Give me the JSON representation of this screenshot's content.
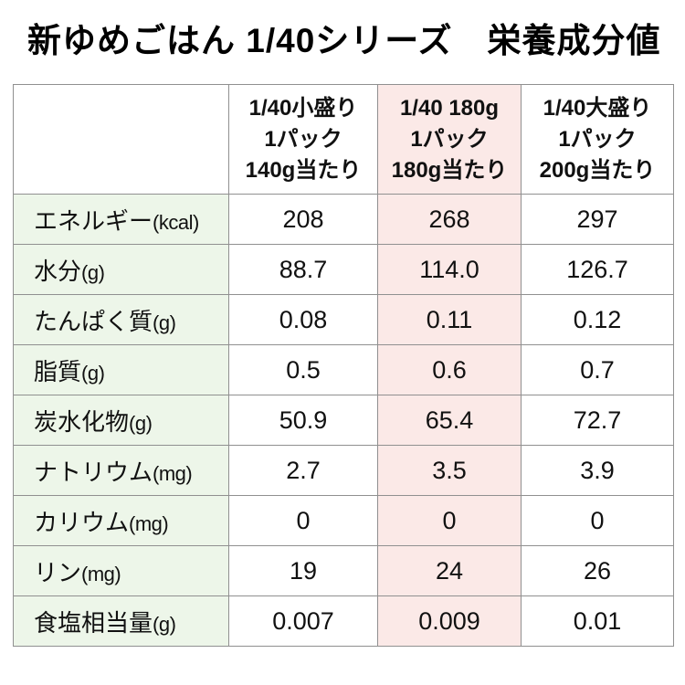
{
  "title": "新ゆめごはん 1/40シリーズ　栄養成分値",
  "table": {
    "columns": [
      {
        "lines": [
          "1/40小盛り",
          "1パック",
          "140g当たり"
        ],
        "highlight": false
      },
      {
        "lines": [
          "1/40 180g",
          "1パック",
          "180g当たり"
        ],
        "highlight": true
      },
      {
        "lines": [
          "1/40大盛り",
          "1パック",
          "200g当たり"
        ],
        "highlight": false
      }
    ],
    "rows": [
      {
        "label": "エネルギー",
        "unit": "(kcal)",
        "values": [
          "208",
          "268",
          "297"
        ]
      },
      {
        "label": "水分",
        "unit": "(g)",
        "values": [
          "88.7",
          "114.0",
          "126.7"
        ]
      },
      {
        "label": "たんぱく質",
        "unit": "(g)",
        "values": [
          "0.08",
          "0.11",
          "0.12"
        ]
      },
      {
        "label": "脂質",
        "unit": "(g)",
        "values": [
          "0.5",
          "0.6",
          "0.7"
        ]
      },
      {
        "label": "炭水化物",
        "unit": "(g)",
        "values": [
          "50.9",
          "65.4",
          "72.7"
        ]
      },
      {
        "label": "ナトリウム",
        "unit": "(mg)",
        "values": [
          "2.7",
          "3.5",
          "3.9"
        ]
      },
      {
        "label": "カリウム",
        "unit": "(mg)",
        "values": [
          "0",
          "0",
          "0"
        ]
      },
      {
        "label": "リン",
        "unit": "(mg)",
        "values": [
          "19",
          "24",
          "26"
        ]
      },
      {
        "label": "食塩相当量",
        "unit": "(g)",
        "values": [
          "0.007",
          "0.009",
          "0.01"
        ]
      }
    ]
  },
  "colors": {
    "label_bg": "#edf6e9",
    "highlight_bg": "#fbe9e7",
    "border": "#909090",
    "text": "#111111"
  }
}
